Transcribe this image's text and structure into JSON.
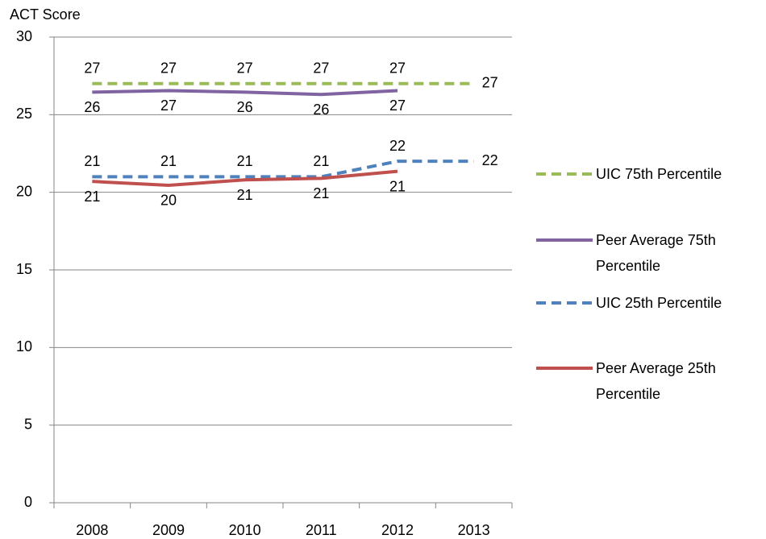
{
  "chart_data": {
    "type": "line",
    "y_label": "ACT Score",
    "categories": [
      "2008",
      "2009",
      "2010",
      "2011",
      "2012",
      "2013"
    ],
    "ylim": [
      0,
      30
    ],
    "yticks": [
      0,
      5,
      10,
      15,
      20,
      25,
      30
    ],
    "grid": true,
    "series": [
      {
        "name": "UIC 75th Percentile",
        "color": "#9bbb59",
        "dashed": true,
        "values": [
          27,
          27,
          27,
          27,
          27,
          27
        ]
      },
      {
        "name": "Peer Average 75th Percentile",
        "color": "#8064a2",
        "dashed": false,
        "values": [
          26.45,
          26.55,
          26.45,
          26.3,
          26.55,
          null
        ],
        "value_labels": [
          "26",
          "27",
          "26",
          "26",
          "27",
          null
        ]
      },
      {
        "name": "UIC 25th Percentile",
        "color": "#4f81bd",
        "dashed": true,
        "values": [
          21,
          21,
          21,
          21,
          22,
          22
        ]
      },
      {
        "name": "Peer Average 25th Percentile",
        "color": "#c0504d",
        "dashed": false,
        "values": [
          20.7,
          20.45,
          20.8,
          20.9,
          21.35,
          null
        ],
        "value_labels": [
          "21",
          "20",
          "21",
          "21",
          "21",
          null
        ]
      }
    ]
  }
}
